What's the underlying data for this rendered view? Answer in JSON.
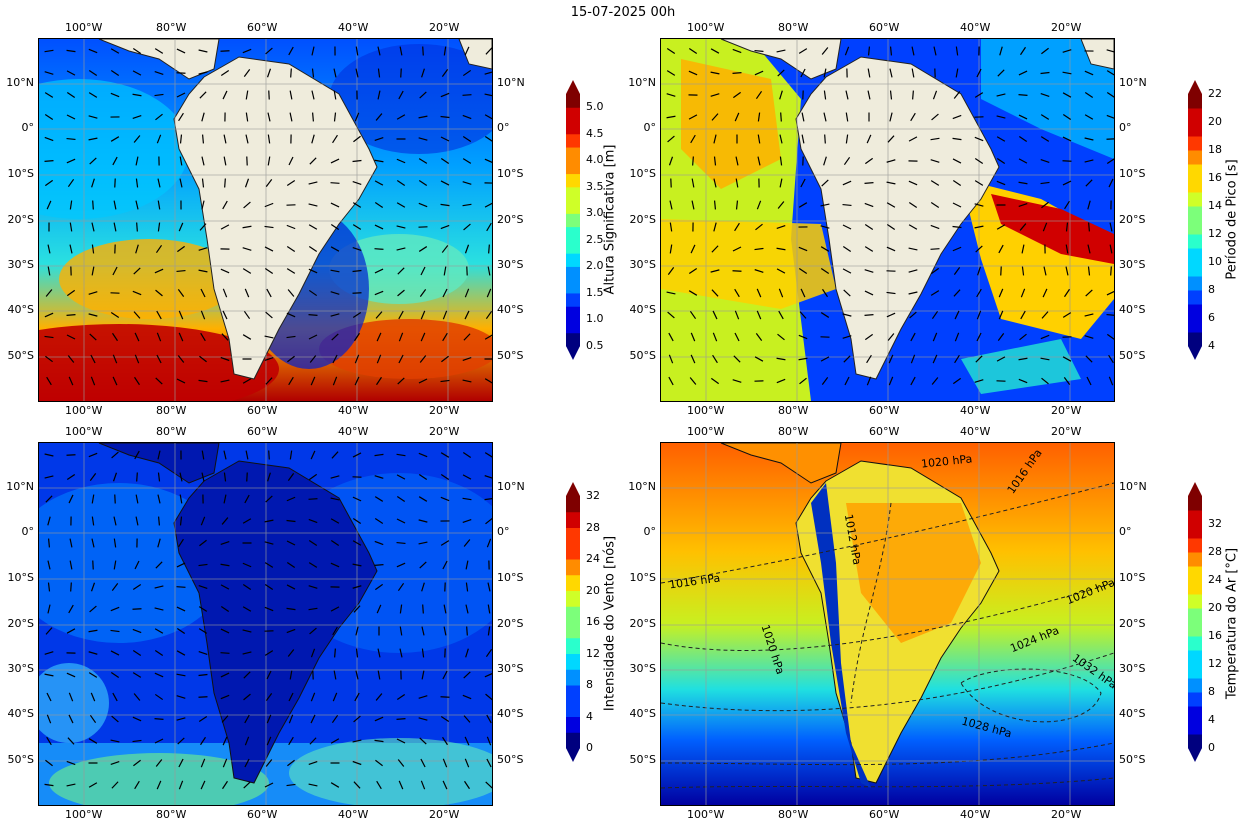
{
  "figure": {
    "title": "15-07-2025 00h"
  },
  "axes": {
    "lon_labels": [
      "100°W",
      "80°W",
      "60°W",
      "40°W",
      "20°W"
    ],
    "lat_labels": [
      "10°N",
      "0°",
      "10°S",
      "20°S",
      "30°S",
      "40°S",
      "50°S"
    ]
  },
  "panels": [
    {
      "id": "wave-height",
      "colorbar": {
        "label": "Altura Significativa [m]",
        "ticks": [
          "0.5",
          "1.0",
          "1.5",
          "2.0",
          "2.5",
          "3.0",
          "3.5",
          "4.0",
          "4.5",
          "5.0"
        ],
        "vmin": 0.5,
        "vmax": 5.25,
        "bands": 19
      }
    },
    {
      "id": "peak-period",
      "colorbar": {
        "label": "Período de Pico [s]",
        "ticks": [
          "4",
          "6",
          "8",
          "10",
          "12",
          "14",
          "16",
          "18",
          "20",
          "22"
        ],
        "vmin": 4,
        "vmax": 22,
        "bands": 18
      }
    },
    {
      "id": "wind-speed",
      "colorbar": {
        "label": "Intensidade do Vento [nós]",
        "ticks": [
          "0",
          "4",
          "8",
          "12",
          "16",
          "20",
          "24",
          "28",
          "32"
        ],
        "vmin": 0,
        "vmax": 32,
        "bands": 16
      }
    },
    {
      "id": "air-temperature",
      "colorbar": {
        "label": "Temperatura do Ar [°C]",
        "ticks": [
          "0",
          "4",
          "8",
          "12",
          "16",
          "20",
          "24",
          "28",
          "32"
        ],
        "vmin": 0,
        "vmax": 36,
        "bands": 18
      },
      "isobar_labels": [
        "1020 hPa",
        "1016 hPa",
        "1016 hPa",
        "1020 hPa",
        "1024 hPa",
        "1032 hPa",
        "1020 hPa",
        "1028 hPa",
        "1012 hPa"
      ]
    }
  ],
  "colors": {
    "land": "#efecdc",
    "jet": [
      "#00007f",
      "#0000e0",
      "#0040ff",
      "#0090ff",
      "#00d8ff",
      "#2affcc",
      "#7cff7a",
      "#cfff28",
      "#ffd800",
      "#ff8c00",
      "#ff3800",
      "#d00000",
      "#7f0000"
    ]
  }
}
